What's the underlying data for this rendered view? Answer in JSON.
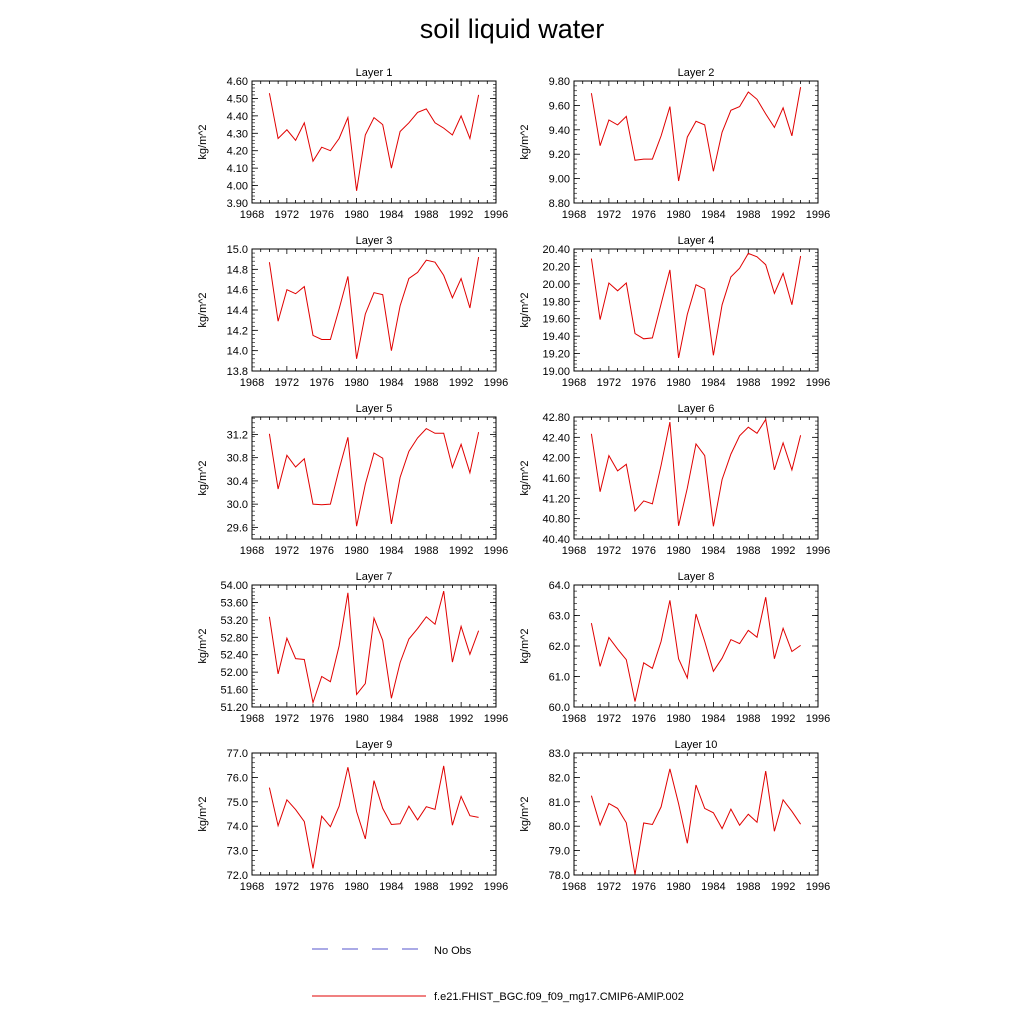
{
  "title": "soil liquid water",
  "legend": {
    "placement": "bottom-center",
    "entries": [
      {
        "label": "No Obs",
        "color": "#5555cc",
        "dash": "dashed"
      },
      {
        "label": "f.e21.FHIST_BGC.f09_f09_mg17.CMIP6-AMIP.002",
        "color": "#e00000",
        "dash": "solid"
      }
    ]
  },
  "chart_data": [
    {
      "type": "line",
      "title": "Layer 1",
      "ylabel": "kg/m^2",
      "xlim": [
        1968,
        1996
      ],
      "ylim": [
        3.9,
        4.6
      ],
      "yticks": [
        "3.90",
        "4.00",
        "4.10",
        "4.20",
        "4.30",
        "4.40",
        "4.50",
        "4.60"
      ],
      "xticks": [
        "1968",
        "1972",
        "1976",
        "1980",
        "1984",
        "1988",
        "1992",
        "1996"
      ],
      "series": [
        {
          "x": [
            1970,
            1971,
            1972,
            1973,
            1974,
            1975,
            1976,
            1977,
            1978,
            1979,
            1980,
            1981,
            1982,
            1983,
            1984,
            1985,
            1986,
            1987,
            1988,
            1989,
            1990,
            1991,
            1992,
            1993,
            1994
          ],
          "y": [
            4.53,
            4.27,
            4.32,
            4.26,
            4.36,
            4.14,
            4.22,
            4.2,
            4.27,
            4.39,
            3.97,
            4.29,
            4.39,
            4.35,
            4.1,
            4.31,
            4.36,
            4.42,
            4.44,
            4.36,
            4.33,
            4.29,
            4.4,
            4.27,
            4.52
          ]
        }
      ]
    },
    {
      "type": "line",
      "title": "Layer 2",
      "ylabel": "kg/m^2",
      "xlim": [
        1968,
        1996
      ],
      "ylim": [
        8.8,
        9.8
      ],
      "yticks": [
        "8.80",
        "9.00",
        "9.20",
        "9.40",
        "9.60",
        "9.80"
      ],
      "xticks": [
        "1968",
        "1972",
        "1976",
        "1980",
        "1984",
        "1988",
        "1992",
        "1996"
      ],
      "series": [
        {
          "x": [
            1970,
            1971,
            1972,
            1973,
            1974,
            1975,
            1976,
            1977,
            1978,
            1979,
            1980,
            1981,
            1982,
            1983,
            1984,
            1985,
            1986,
            1987,
            1988,
            1989,
            1990,
            1991,
            1992,
            1993,
            1994
          ],
          "y": [
            9.7,
            9.27,
            9.48,
            9.44,
            9.51,
            9.15,
            9.16,
            9.16,
            9.35,
            9.59,
            8.98,
            9.34,
            9.47,
            9.44,
            9.06,
            9.38,
            9.56,
            9.59,
            9.71,
            9.65,
            9.53,
            9.42,
            9.58,
            9.35,
            9.75
          ]
        }
      ]
    },
    {
      "type": "line",
      "title": "Layer 3",
      "ylabel": "kg/m^2",
      "xlim": [
        1968,
        1996
      ],
      "ylim": [
        13.8,
        15.0
      ],
      "yticks": [
        "13.8",
        "14.0",
        "14.2",
        "14.4",
        "14.6",
        "14.8",
        "15.0"
      ],
      "xticks": [
        "1968",
        "1972",
        "1976",
        "1980",
        "1984",
        "1988",
        "1992",
        "1996"
      ],
      "series": [
        {
          "x": [
            1970,
            1971,
            1972,
            1973,
            1974,
            1975,
            1976,
            1977,
            1978,
            1979,
            1980,
            1981,
            1982,
            1983,
            1984,
            1985,
            1986,
            1987,
            1988,
            1989,
            1990,
            1991,
            1992,
            1993,
            1994
          ],
          "y": [
            14.87,
            14.29,
            14.6,
            14.56,
            14.63,
            14.15,
            14.11,
            14.11,
            14.41,
            14.73,
            13.92,
            14.36,
            14.57,
            14.55,
            14.0,
            14.44,
            14.71,
            14.77,
            14.89,
            14.87,
            14.74,
            14.52,
            14.71,
            14.42,
            14.92
          ]
        }
      ]
    },
    {
      "type": "line",
      "title": "Layer 4",
      "ylabel": "kg/m^2",
      "xlim": [
        1968,
        1996
      ],
      "ylim": [
        19.0,
        20.4
      ],
      "yticks": [
        "19.00",
        "19.20",
        "19.40",
        "19.60",
        "19.80",
        "20.00",
        "20.20",
        "20.40"
      ],
      "xticks": [
        "1968",
        "1972",
        "1976",
        "1980",
        "1984",
        "1988",
        "1992",
        "1996"
      ],
      "series": [
        {
          "x": [
            1970,
            1971,
            1972,
            1973,
            1974,
            1975,
            1976,
            1977,
            1978,
            1979,
            1980,
            1981,
            1982,
            1983,
            1984,
            1985,
            1986,
            1987,
            1988,
            1989,
            1990,
            1991,
            1992,
            1993,
            1994
          ],
          "y": [
            20.29,
            19.59,
            20.01,
            19.92,
            20.01,
            19.43,
            19.37,
            19.38,
            19.77,
            20.16,
            19.15,
            19.65,
            19.99,
            19.94,
            19.18,
            19.76,
            20.08,
            20.18,
            20.35,
            20.31,
            20.22,
            19.89,
            20.12,
            19.76,
            20.32
          ]
        }
      ]
    },
    {
      "type": "line",
      "title": "Layer 5",
      "ylabel": "kg/m^2",
      "xlim": [
        1968,
        1996
      ],
      "ylim": [
        29.4,
        31.5
      ],
      "yticks": [
        "29.6",
        "30.0",
        "30.4",
        "30.8",
        "31.2"
      ],
      "xticks": [
        "1968",
        "1972",
        "1976",
        "1980",
        "1984",
        "1988",
        "1992",
        "1996"
      ],
      "series": [
        {
          "x": [
            1970,
            1971,
            1972,
            1973,
            1974,
            1975,
            1976,
            1977,
            1978,
            1979,
            1980,
            1981,
            1982,
            1983,
            1984,
            1985,
            1986,
            1987,
            1988,
            1989,
            1990,
            1991,
            1992,
            1993,
            1994
          ],
          "y": [
            31.21,
            30.26,
            30.84,
            30.64,
            30.78,
            30.0,
            29.99,
            30.0,
            30.6,
            31.15,
            29.62,
            30.34,
            30.88,
            30.79,
            29.66,
            30.46,
            30.91,
            31.14,
            31.3,
            31.22,
            31.22,
            30.63,
            31.03,
            30.54,
            31.24
          ]
        }
      ]
    },
    {
      "type": "line",
      "title": "Layer 6",
      "ylabel": "kg/m^2",
      "xlim": [
        1968,
        1996
      ],
      "ylim": [
        40.4,
        42.8
      ],
      "yticks": [
        "40.40",
        "40.80",
        "41.20",
        "41.60",
        "42.00",
        "42.40",
        "42.80"
      ],
      "xticks": [
        "1968",
        "1972",
        "1976",
        "1980",
        "1984",
        "1988",
        "1992",
        "1996"
      ],
      "series": [
        {
          "x": [
            1970,
            1971,
            1972,
            1973,
            1974,
            1975,
            1976,
            1977,
            1978,
            1979,
            1980,
            1981,
            1982,
            1983,
            1984,
            1985,
            1986,
            1987,
            1988,
            1989,
            1990,
            1991,
            1992,
            1993,
            1994
          ],
          "y": [
            42.47,
            41.33,
            42.04,
            41.74,
            41.87,
            40.95,
            41.15,
            41.09,
            41.85,
            42.7,
            40.66,
            41.4,
            42.27,
            42.04,
            40.65,
            41.57,
            42.07,
            42.43,
            42.6,
            42.48,
            42.75,
            41.76,
            42.29,
            41.76,
            42.44
          ]
        }
      ]
    },
    {
      "type": "line",
      "title": "Layer 7",
      "ylabel": "kg/m^2",
      "xlim": [
        1968,
        1996
      ],
      "ylim": [
        51.2,
        54.0
      ],
      "yticks": [
        "51.20",
        "51.60",
        "52.00",
        "52.40",
        "52.80",
        "53.20",
        "53.60",
        "54.00"
      ],
      "xticks": [
        "1968",
        "1972",
        "1976",
        "1980",
        "1984",
        "1988",
        "1992",
        "1996"
      ],
      "series": [
        {
          "x": [
            1970,
            1971,
            1972,
            1973,
            1974,
            1975,
            1976,
            1977,
            1978,
            1979,
            1980,
            1981,
            1982,
            1983,
            1984,
            1985,
            1986,
            1987,
            1988,
            1989,
            1990,
            1991,
            1992,
            1993,
            1994
          ],
          "y": [
            53.27,
            51.96,
            52.78,
            52.31,
            52.29,
            51.3,
            51.9,
            51.78,
            52.6,
            53.82,
            51.49,
            51.74,
            53.24,
            52.73,
            51.4,
            52.22,
            52.76,
            53.0,
            53.27,
            53.1,
            53.86,
            52.23,
            53.05,
            52.41,
            52.95
          ]
        }
      ]
    },
    {
      "type": "line",
      "title": "Layer 8",
      "ylabel": "kg/m^2",
      "xlim": [
        1968,
        1996
      ],
      "ylim": [
        60.0,
        64.0
      ],
      "yticks": [
        "60.0",
        "61.0",
        "62.0",
        "63.0",
        "64.0"
      ],
      "xticks": [
        "1968",
        "1972",
        "1976",
        "1980",
        "1984",
        "1988",
        "1992",
        "1996"
      ],
      "series": [
        {
          "x": [
            1970,
            1971,
            1972,
            1973,
            1974,
            1975,
            1976,
            1977,
            1978,
            1979,
            1980,
            1981,
            1982,
            1983,
            1984,
            1985,
            1986,
            1987,
            1988,
            1989,
            1990,
            1991,
            1992,
            1993,
            1994
          ],
          "y": [
            62.75,
            61.33,
            62.28,
            61.9,
            61.55,
            60.18,
            61.45,
            61.27,
            62.15,
            63.5,
            61.58,
            60.95,
            63.05,
            62.15,
            61.17,
            61.6,
            62.21,
            62.08,
            62.51,
            62.29,
            63.6,
            61.58,
            62.58,
            61.82,
            62.02
          ]
        }
      ]
    },
    {
      "type": "line",
      "title": "Layer 9",
      "ylabel": "kg/m^2",
      "xlim": [
        1968,
        1996
      ],
      "ylim": [
        72.0,
        77.0
      ],
      "yticks": [
        "72.0",
        "73.0",
        "74.0",
        "75.0",
        "76.0",
        "77.0"
      ],
      "xticks": [
        "1968",
        "1972",
        "1976",
        "1980",
        "1984",
        "1988",
        "1992",
        "1996"
      ],
      "series": [
        {
          "x": [
            1970,
            1971,
            1972,
            1973,
            1974,
            1975,
            1976,
            1977,
            1978,
            1979,
            1980,
            1981,
            1982,
            1983,
            1984,
            1985,
            1986,
            1987,
            1988,
            1989,
            1990,
            1991,
            1992,
            1993,
            1994
          ],
          "y": [
            75.58,
            74.02,
            75.08,
            74.68,
            74.19,
            72.27,
            74.41,
            73.98,
            74.82,
            76.42,
            74.6,
            73.48,
            75.87,
            74.73,
            74.07,
            74.1,
            74.82,
            74.26,
            74.8,
            74.69,
            76.47,
            74.04,
            75.22,
            74.43,
            74.36
          ]
        }
      ]
    },
    {
      "type": "line",
      "title": "Layer 10",
      "ylabel": "kg/m^2",
      "xlim": [
        1968,
        1996
      ],
      "ylim": [
        78.0,
        83.0
      ],
      "yticks": [
        "78.0",
        "79.0",
        "80.0",
        "81.0",
        "82.0",
        "83.0"
      ],
      "xticks": [
        "1968",
        "1972",
        "1976",
        "1980",
        "1984",
        "1988",
        "1992",
        "1996"
      ],
      "series": [
        {
          "x": [
            1970,
            1971,
            1972,
            1973,
            1974,
            1975,
            1976,
            1977,
            1978,
            1979,
            1980,
            1981,
            1982,
            1983,
            1984,
            1985,
            1986,
            1987,
            1988,
            1989,
            1990,
            1991,
            1992,
            1993,
            1994
          ],
          "y": [
            81.25,
            80.05,
            80.93,
            80.73,
            80.14,
            78.02,
            80.13,
            80.07,
            80.79,
            82.35,
            80.92,
            79.3,
            81.69,
            80.73,
            80.55,
            79.9,
            80.7,
            80.04,
            80.49,
            80.16,
            82.26,
            79.79,
            81.08,
            80.61,
            80.08
          ]
        }
      ]
    }
  ]
}
